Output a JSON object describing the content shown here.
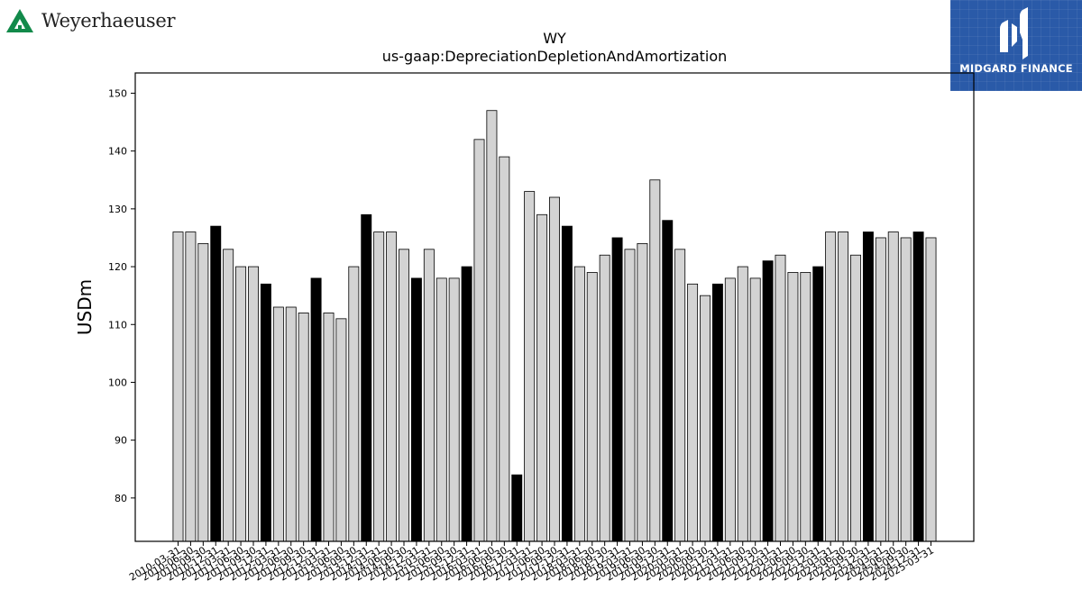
{
  "logos": {
    "left_brand": "Weyerhaeuser",
    "right_brand": "MIDGARD FINANCE"
  },
  "colors": {
    "bar_default": "#d3d3d3",
    "bar_highlight": "#000000",
    "bar_edge": "#000000",
    "left_logo_green": "#128a4a",
    "right_logo_bg": "#2a5aa8"
  },
  "chart_data": {
    "type": "bar",
    "title": "WY",
    "subtitle": "us-gaap:DepreciationDepletionAndAmortization",
    "xlabel": "",
    "ylabel": "USDm",
    "ylim": [
      72.5,
      153.5
    ],
    "yticks": [
      80,
      90,
      100,
      110,
      120,
      130,
      140,
      150
    ],
    "grid": false,
    "legend": "none",
    "categories": [
      "2010-03-31",
      "2010-06-30",
      "2010-09-30",
      "2010-12-31",
      "2011-03-31",
      "2011-06-30",
      "2011-09-30",
      "2011-12-31",
      "2012-03-31",
      "2012-06-30",
      "2012-09-30",
      "2012-12-31",
      "2013-03-31",
      "2013-06-30",
      "2013-09-30",
      "2013-12-31",
      "2014-03-31",
      "2014-06-30",
      "2014-09-30",
      "2014-12-31",
      "2015-03-31",
      "2015-06-30",
      "2015-09-30",
      "2015-12-31",
      "2016-03-31",
      "2016-06-30",
      "2016-09-30",
      "2016-12-31",
      "2017-03-31",
      "2017-06-30",
      "2017-09-30",
      "2017-12-31",
      "2018-03-31",
      "2018-06-30",
      "2018-09-30",
      "2018-12-31",
      "2019-03-31",
      "2019-06-30",
      "2019-09-30",
      "2019-12-31",
      "2020-03-31",
      "2020-06-30",
      "2020-09-30",
      "2020-12-31",
      "2021-03-31",
      "2021-06-30",
      "2021-09-30",
      "2021-12-31",
      "2022-03-31",
      "2022-06-30",
      "2022-09-30",
      "2022-12-31",
      "2023-03-31",
      "2023-06-30",
      "2023-09-30",
      "2023-12-31",
      "2024-03-31",
      "2024-06-30",
      "2024-09-30",
      "2024-12-31",
      "2025-03-31"
    ],
    "values": [
      126,
      126,
      124,
      127,
      123,
      120,
      120,
      117,
      113,
      113,
      112,
      118,
      112,
      111,
      120,
      129,
      126,
      126,
      123,
      118,
      123,
      118,
      118,
      120,
      142,
      147,
      139,
      84,
      133,
      129,
      132,
      127,
      120,
      119,
      122,
      125,
      123,
      124,
      135,
      128,
      123,
      117,
      115,
      117,
      118,
      120,
      118,
      121,
      122,
      119,
      119,
      120,
      126,
      126,
      122,
      126,
      125,
      126,
      125,
      126,
      125
    ],
    "highlight_every_4th_from_index": 3,
    "tick_label_step": 1
  }
}
